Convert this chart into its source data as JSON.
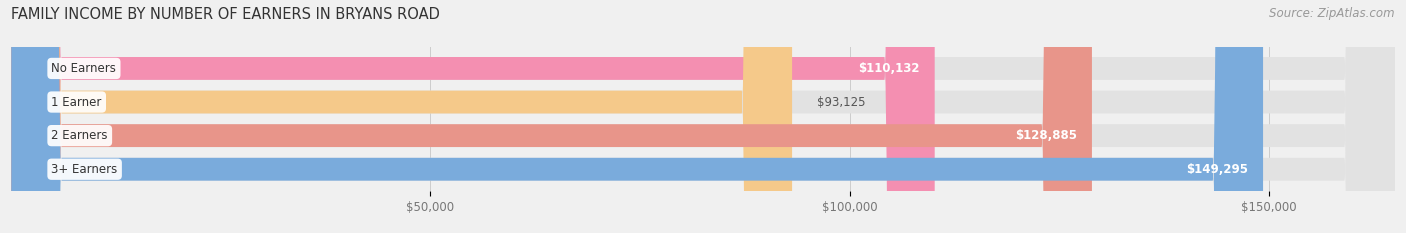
{
  "title": "FAMILY INCOME BY NUMBER OF EARNERS IN BRYANS ROAD",
  "source": "Source: ZipAtlas.com",
  "categories": [
    "No Earners",
    "1 Earner",
    "2 Earners",
    "3+ Earners"
  ],
  "values": [
    110132,
    93125,
    128885,
    149295
  ],
  "labels": [
    "$110,132",
    "$93,125",
    "$128,885",
    "$149,295"
  ],
  "bar_colors": [
    "#f48fb1",
    "#f5c98a",
    "#e8958a",
    "#7aabdc"
  ],
  "label_in_bar": [
    true,
    false,
    true,
    true
  ],
  "background_color": "#f0f0f0",
  "bar_bg_color": "#e2e2e2",
  "xlim": [
    0,
    165000
  ],
  "tick_values": [
    50000,
    100000,
    150000
  ],
  "tick_labels": [
    "$50,000",
    "$100,000",
    "$150,000"
  ],
  "title_fontsize": 10.5,
  "source_fontsize": 8.5,
  "bar_label_fontsize": 8.5,
  "category_fontsize": 8.5,
  "tick_fontsize": 8.5
}
